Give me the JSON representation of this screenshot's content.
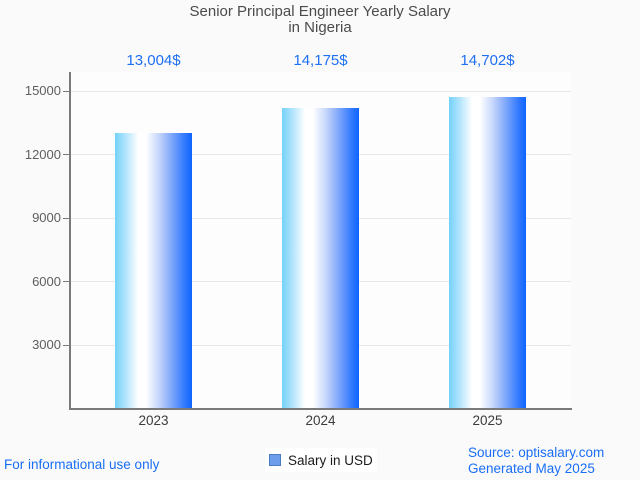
{
  "page": {
    "background": "#fafafa"
  },
  "chart_data": {
    "type": "bar",
    "title": "Senior Principal Engineer Yearly Salary in Nigeria",
    "title_lines": [
      "Senior Principal Engineer Yearly Salary",
      "in Nigeria"
    ],
    "categories": [
      "2023",
      "2024",
      "2025"
    ],
    "values": [
      13004,
      14175,
      14702
    ],
    "value_labels": [
      "13,004$",
      "14,175$",
      "14,702$"
    ],
    "series": [
      {
        "name": "Salary in USD",
        "values": [
          13004,
          14175,
          14702
        ]
      }
    ],
    "xlabel": "",
    "ylabel": "",
    "ylim": [
      0,
      15900
    ],
    "yticks": [
      3000,
      6000,
      9000,
      12000,
      15000
    ],
    "grid": true,
    "legend_position": "bottom",
    "colors": {
      "value_label": "#1e6ff2",
      "bar_gradient_left": "#74d2fa",
      "bar_gradient_highlight": "#ffffff",
      "bar_gradient_right": "#0d63fe",
      "axis": "#7a7a7a",
      "gridline": "#e8e8e8",
      "title_text": "#4b4b4b",
      "ytick_text": "#5e5e5e",
      "xtick_text": "#3b3b3b"
    }
  },
  "legend": {
    "label": "Salary in USD",
    "swatch_fill": "#6d9eeb",
    "swatch_border": "#4a7dc0"
  },
  "footer": {
    "left_note": "For informational use only",
    "source": "Source: optisalary.com",
    "generated": "Generated May 2025",
    "link_color": "#1a6ef5"
  }
}
